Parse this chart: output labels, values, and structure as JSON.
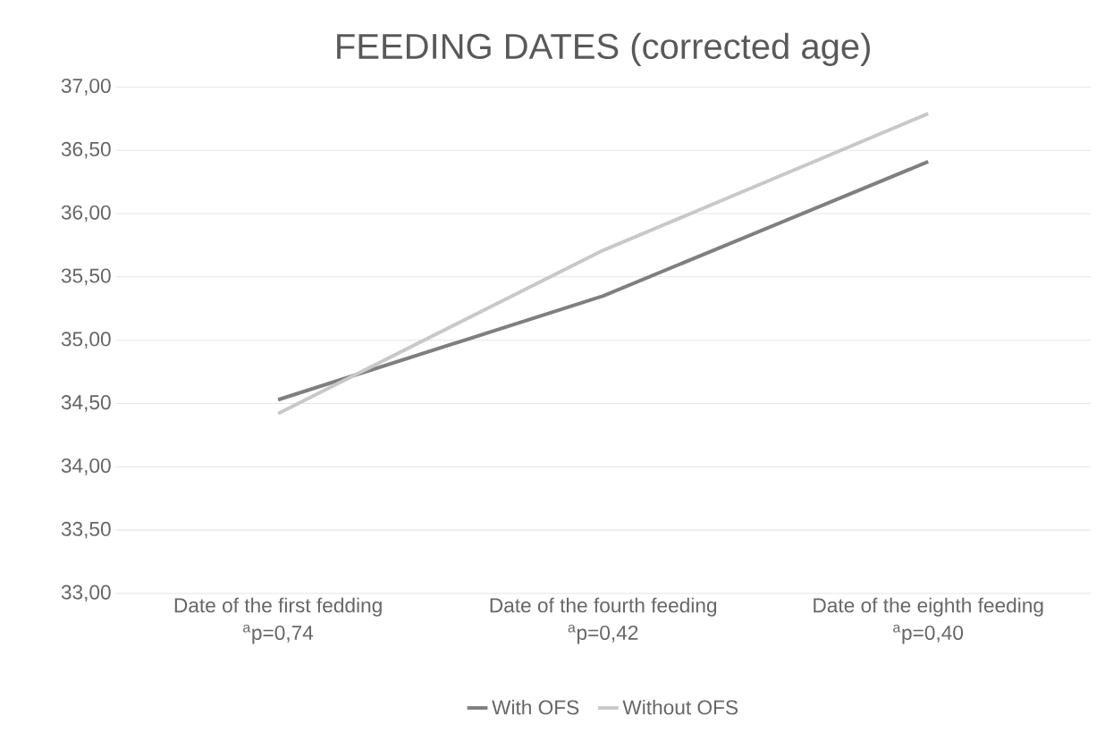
{
  "chart_data": {
    "type": "line",
    "title": "FEEDING DATES (corrected age)",
    "categories": [
      "Date of the first fedding",
      "Date of the fourth feeding",
      "Date of the eighth feeding"
    ],
    "annotations": [
      "$^{a}$p=0,74",
      "$^{a}$p=0,42",
      "$^{a}$p=0,40"
    ],
    "series": [
      {
        "name": "With OFS",
        "color": "#7f7f7f",
        "values": [
          34.53,
          35.35,
          36.41
        ]
      },
      {
        "name": "Without OFS",
        "color": "#c8c8c8",
        "values": [
          34.42,
          35.71,
          36.79
        ]
      }
    ],
    "ylim": [
      33,
      37
    ],
    "yticks": [
      {
        "value": 33,
        "label": "33,00"
      },
      {
        "value": 33.5,
        "label": "33,50"
      },
      {
        "value": 34,
        "label": "34,00"
      },
      {
        "value": 34.5,
        "label": "34,50"
      },
      {
        "value": 35,
        "label": "35,00"
      },
      {
        "value": 35.5,
        "label": "35,50"
      },
      {
        "value": 36,
        "label": "36,00"
      },
      {
        "value": 36.5,
        "label": "36,50"
      },
      {
        "value": 37,
        "label": "37,00"
      }
    ],
    "grid": "y",
    "legend": "bottom",
    "marker": "none",
    "line_style": "solid"
  }
}
